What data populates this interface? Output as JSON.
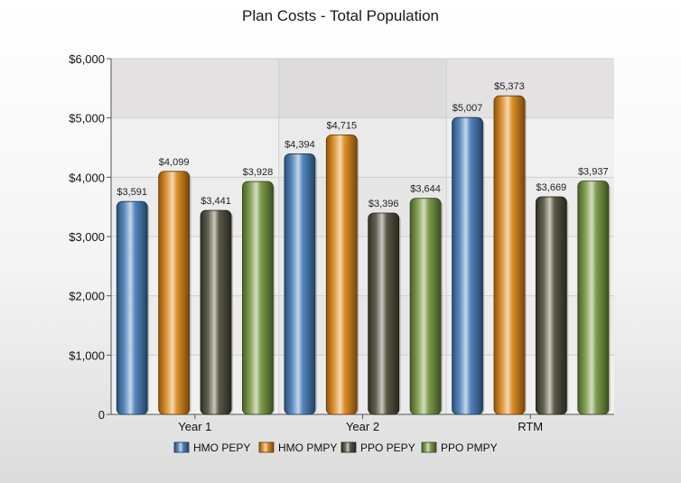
{
  "chart_data": {
    "type": "bar",
    "title": "Plan Costs - Total Population",
    "xlabel": "",
    "ylabel": "",
    "categories": [
      "Year 1",
      "Year 2",
      "RTM"
    ],
    "ylim": [
      0,
      6000
    ],
    "yticks": [
      0,
      1000,
      2000,
      3000,
      4000,
      5000,
      6000
    ],
    "ytick_labels": [
      "0",
      "$1,000",
      "$2,000",
      "$3,000",
      "$4,000",
      "$5,000",
      "$6,000"
    ],
    "grid": true,
    "legend_position": "bottom",
    "series": [
      {
        "name": "HMO PEPY",
        "color": "#3f78b5",
        "values": [
          3591,
          4394,
          5007
        ],
        "labels": [
          "$3,591",
          "$4,394",
          "$5,007"
        ]
      },
      {
        "name": "HMO PMPY",
        "color": "#d9810f",
        "values": [
          4099,
          4715,
          5373
        ],
        "labels": [
          "$4,099",
          "$4,715",
          "$5,373"
        ]
      },
      {
        "name": "PPO PEPY",
        "color": "#4a4732",
        "values": [
          3441,
          3396,
          3669
        ],
        "labels": [
          "$3,441",
          "$3,396",
          "$3,669"
        ]
      },
      {
        "name": "PPO PMPY",
        "color": "#6f9238",
        "values": [
          3928,
          3644,
          3937
        ],
        "labels": [
          "$3,928",
          "$3,644",
          "$3,937"
        ]
      }
    ]
  }
}
